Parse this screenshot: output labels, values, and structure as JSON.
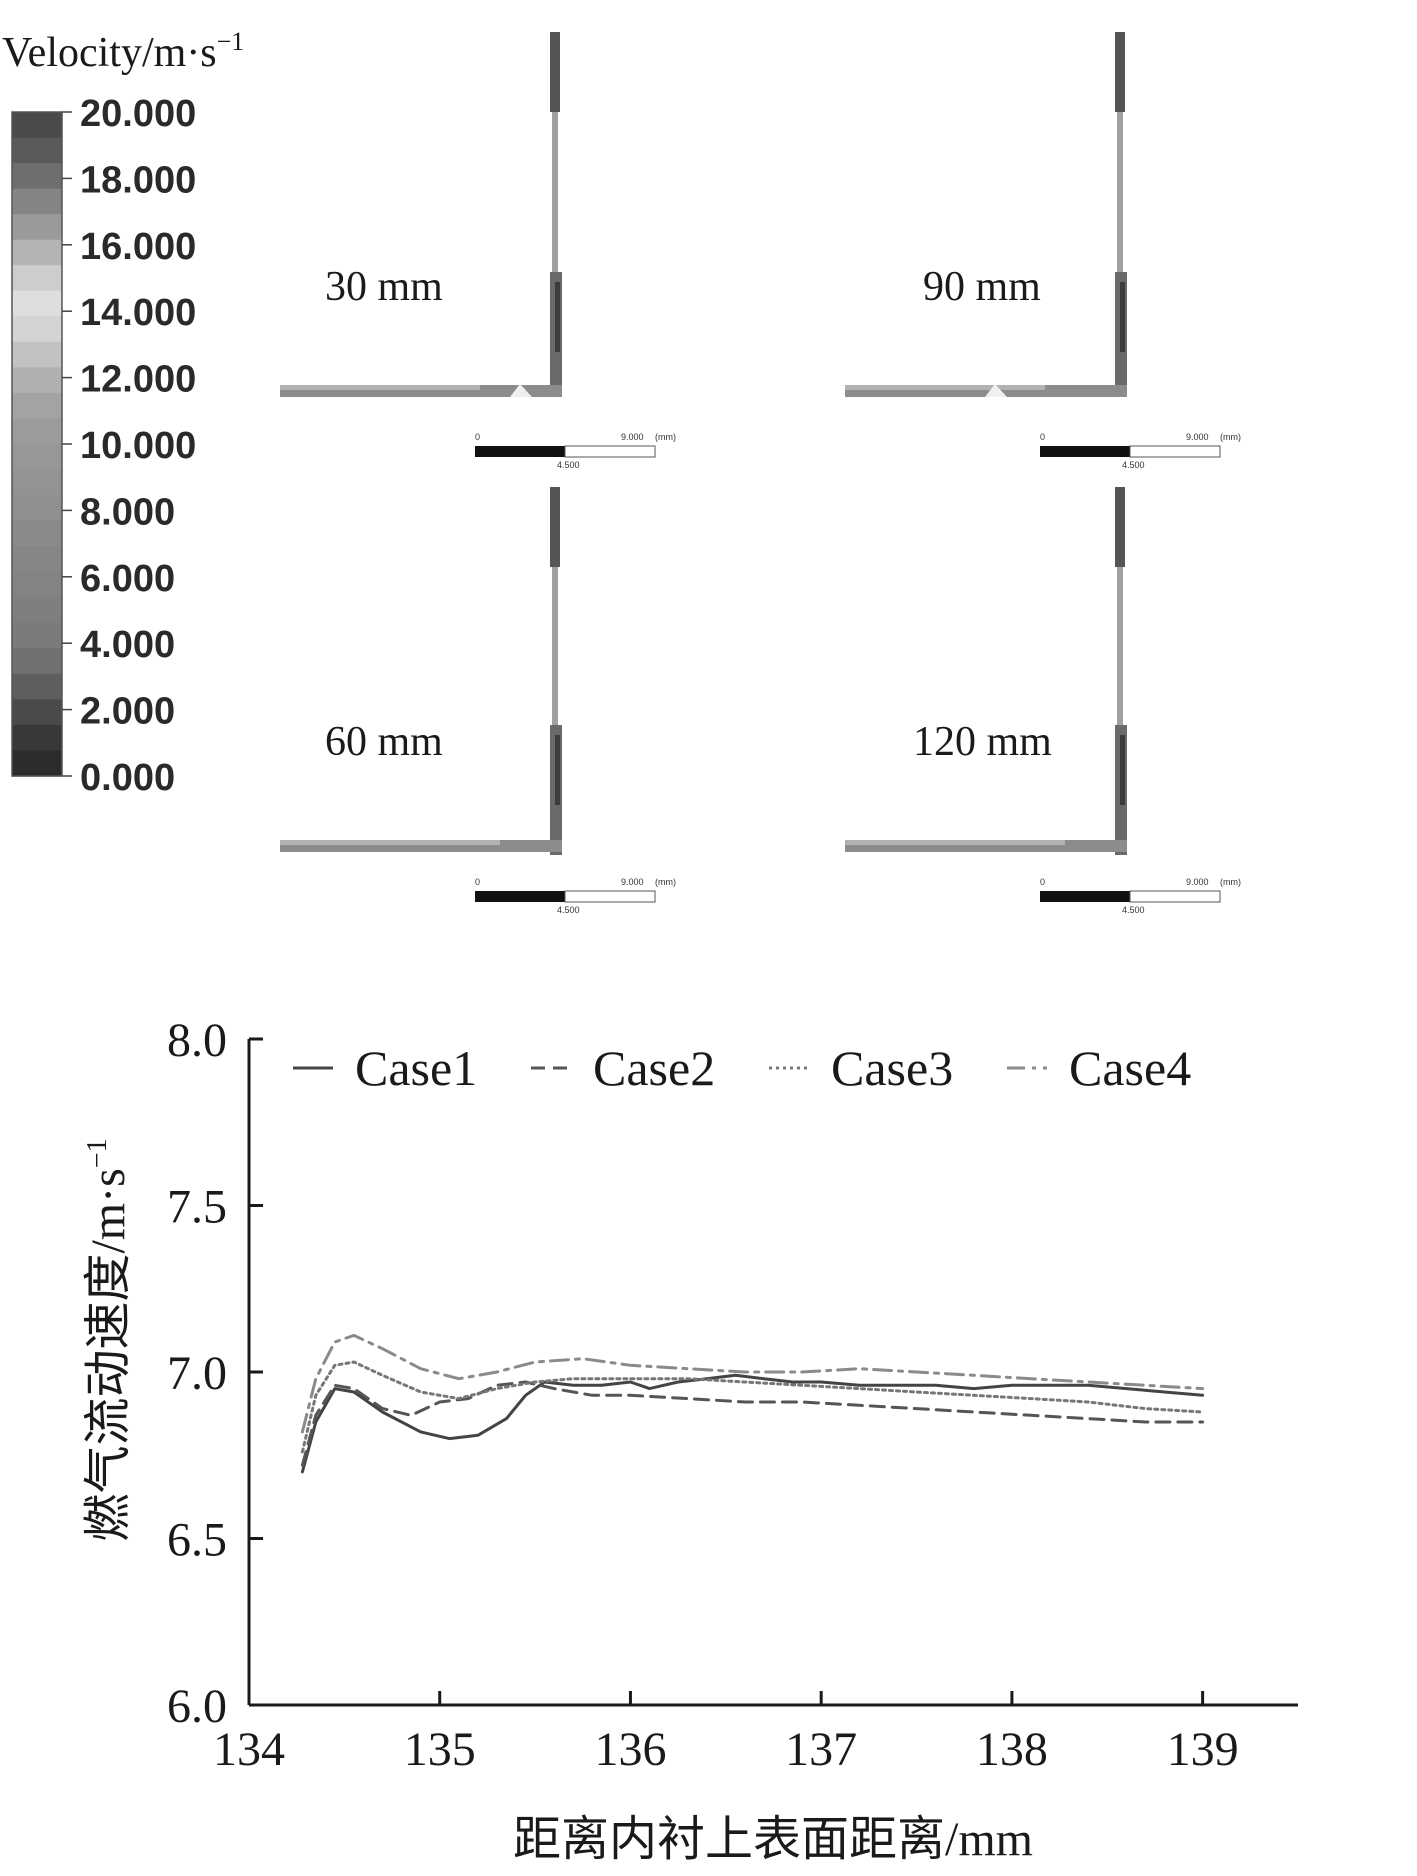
{
  "contour_figure": {
    "colorbar_title": "Velocity/m·s",
    "colorbar_title_exp": "−1",
    "colorbar_ticks": [
      "20.000",
      "18.000",
      "16.000",
      "14.000",
      "12.000",
      "10.000",
      "8.000",
      "6.000",
      "4.000",
      "2.000",
      "0.000"
    ],
    "colorbar_colors": [
      "#4a4a4a",
      "#5a5a5a",
      "#6e6e6e",
      "#848484",
      "#9a9a9a",
      "#b4b4b4",
      "#cdcdcd",
      "#dedede",
      "#d3d3d3",
      "#c2c2c2",
      "#b0b0b0",
      "#a3a3a3",
      "#9b9b9b",
      "#979797",
      "#939393",
      "#8f8f8f",
      "#8a8a8a",
      "#868686",
      "#838383",
      "#7f7f7f",
      "#7b7b7b",
      "#707070",
      "#5e5e5e",
      "#4a4a4a",
      "#383838",
      "#2c2c2c"
    ],
    "panels": [
      {
        "label": "30 mm",
        "scale_start": "0",
        "scale_end": "9.000",
        "scale_unit": "(mm)",
        "scale_mid": "4.500"
      },
      {
        "label": "90 mm",
        "scale_start": "0",
        "scale_end": "9.000",
        "scale_unit": "(mm)",
        "scale_mid": "4.500"
      },
      {
        "label": "60 mm",
        "scale_start": "0",
        "scale_end": "9.000",
        "scale_unit": "(mm)",
        "scale_mid": "4.500"
      },
      {
        "label": "120 mm",
        "scale_start": "0",
        "scale_end": "9.000",
        "scale_unit": "(mm)",
        "scale_mid": "4.500"
      }
    ]
  },
  "chart_data": {
    "type": "line",
    "title": "",
    "xlabel": "距离内衬上表面距离/mm",
    "ylabel": "燃气流动速度/m·s",
    "ylabel_exp": "−1",
    "xlim": [
      134,
      139.5
    ],
    "ylim": [
      6.0,
      8.0
    ],
    "xticks": [
      134,
      135,
      136,
      137,
      138,
      139
    ],
    "yticks": [
      6.0,
      6.5,
      7.0,
      7.5,
      8.0
    ],
    "xtick_labels": [
      "134",
      "135",
      "136",
      "137",
      "138",
      "139"
    ],
    "ytick_labels": [
      "6.0",
      "6.5",
      "7.0",
      "7.5",
      "8.0"
    ],
    "legend_position": "top",
    "series": [
      {
        "name": "Case1",
        "style": "solid",
        "color": "#444444",
        "x": [
          134.28,
          134.35,
          134.45,
          134.55,
          134.7,
          134.9,
          135.05,
          135.2,
          135.35,
          135.45,
          135.55,
          135.7,
          135.85,
          136.0,
          136.1,
          136.25,
          136.4,
          136.55,
          136.7,
          136.85,
          137.0,
          137.2,
          137.4,
          137.6,
          137.8,
          138.0,
          138.2,
          138.4,
          138.6,
          138.8,
          139.0
        ],
        "y": [
          6.7,
          6.85,
          6.95,
          6.94,
          6.88,
          6.82,
          6.8,
          6.81,
          6.86,
          6.93,
          6.97,
          6.96,
          6.96,
          6.97,
          6.95,
          6.97,
          6.98,
          6.99,
          6.98,
          6.97,
          6.97,
          6.96,
          6.96,
          6.96,
          6.95,
          6.96,
          6.96,
          6.96,
          6.95,
          6.94,
          6.93
        ]
      },
      {
        "name": "Case2",
        "style": "dashed",
        "color": "#555555",
        "x": [
          134.28,
          134.35,
          134.45,
          134.55,
          134.7,
          134.85,
          135.0,
          135.15,
          135.3,
          135.45,
          135.6,
          135.8,
          136.0,
          136.3,
          136.6,
          136.9,
          137.2,
          137.5,
          137.8,
          138.1,
          138.4,
          138.7,
          139.0
        ],
        "y": [
          6.72,
          6.87,
          6.96,
          6.95,
          6.89,
          6.87,
          6.91,
          6.92,
          6.96,
          6.97,
          6.95,
          6.93,
          6.93,
          6.92,
          6.91,
          6.91,
          6.9,
          6.89,
          6.88,
          6.87,
          6.86,
          6.85,
          6.85
        ]
      },
      {
        "name": "Case3",
        "style": "dotted",
        "color": "#777777",
        "x": [
          134.28,
          134.35,
          134.45,
          134.55,
          134.7,
          134.9,
          135.1,
          135.3,
          135.5,
          135.7,
          136.0,
          136.3,
          136.6,
          136.9,
          137.2,
          137.5,
          137.8,
          138.1,
          138.4,
          138.7,
          139.0
        ],
        "y": [
          6.76,
          6.93,
          7.02,
          7.03,
          6.99,
          6.94,
          6.92,
          6.95,
          6.97,
          6.98,
          6.98,
          6.98,
          6.97,
          6.96,
          6.95,
          6.94,
          6.93,
          6.92,
          6.91,
          6.89,
          6.88
        ]
      },
      {
        "name": "Case4",
        "style": "dashdot",
        "color": "#8a8a8a",
        "x": [
          134.28,
          134.35,
          134.45,
          134.55,
          134.7,
          134.9,
          135.1,
          135.3,
          135.5,
          135.75,
          136.0,
          136.3,
          136.6,
          136.9,
          137.2,
          137.5,
          137.8,
          138.1,
          138.4,
          138.7,
          139.0
        ],
        "y": [
          6.82,
          6.98,
          7.09,
          7.11,
          7.07,
          7.01,
          6.98,
          7.0,
          7.03,
          7.04,
          7.02,
          7.01,
          7.0,
          7.0,
          7.01,
          7.0,
          6.99,
          6.98,
          6.97,
          6.96,
          6.95
        ]
      }
    ]
  }
}
